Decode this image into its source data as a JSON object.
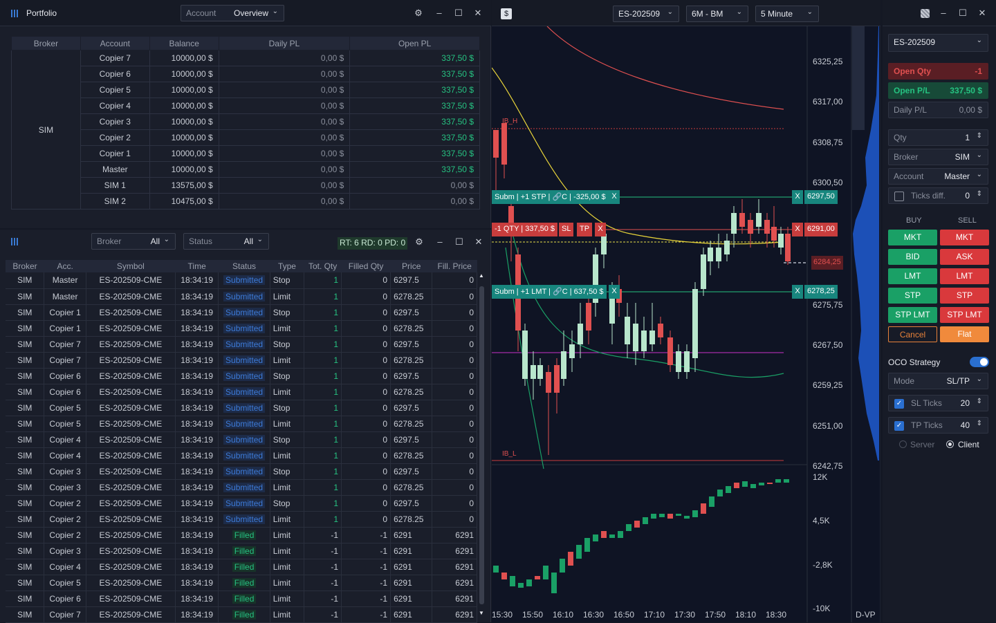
{
  "portfolio": {
    "title": "Portfolio",
    "dropdown_label": "Account",
    "dropdown_value": "Overview",
    "columns": [
      "Broker",
      "Account",
      "Balance",
      "Daily PL",
      "Open PL"
    ],
    "broker": "SIM",
    "rows": [
      {
        "account": "Copier 7",
        "balance": "10000,00 $",
        "daily": "0,00 $",
        "open": "337,50 $",
        "open_pos": true
      },
      {
        "account": "Copier 6",
        "balance": "10000,00 $",
        "daily": "0,00 $",
        "open": "337,50 $",
        "open_pos": true
      },
      {
        "account": "Copier 5",
        "balance": "10000,00 $",
        "daily": "0,00 $",
        "open": "337,50 $",
        "open_pos": true
      },
      {
        "account": "Copier 4",
        "balance": "10000,00 $",
        "daily": "0,00 $",
        "open": "337,50 $",
        "open_pos": true
      },
      {
        "account": "Copier 3",
        "balance": "10000,00 $",
        "daily": "0,00 $",
        "open": "337,50 $",
        "open_pos": true
      },
      {
        "account": "Copier 2",
        "balance": "10000,00 $",
        "daily": "0,00 $",
        "open": "337,50 $",
        "open_pos": true
      },
      {
        "account": "Copier 1",
        "balance": "10000,00 $",
        "daily": "0,00 $",
        "open": "337,50 $",
        "open_pos": true
      },
      {
        "account": "Master",
        "balance": "10000,00 $",
        "daily": "0,00 $",
        "open": "337,50 $",
        "open_pos": true
      },
      {
        "account": "SIM 1",
        "balance": "13575,00 $",
        "daily": "0,00 $",
        "open": "0,00 $",
        "open_pos": false
      },
      {
        "account": "SIM 2",
        "balance": "10475,00 $",
        "daily": "0,00 $",
        "open": "0,00 $",
        "open_pos": false
      }
    ]
  },
  "orders": {
    "broker_label": "Broker",
    "broker_value": "All",
    "status_label": "Status",
    "status_value": "All",
    "rt_badge": "RT: 6  RD: 0  PD: 0",
    "columns": [
      "Broker",
      "Acc.",
      "Symbol",
      "Time",
      "Status",
      "Type",
      "Tot. Qty",
      "Filled Qty",
      "Price",
      "Fill. Price"
    ],
    "rows": [
      [
        "SIM",
        "Master",
        "ES-202509-CME",
        "18:34:19",
        "Submitted",
        "Stop",
        "1",
        "0",
        "6297.5",
        "0"
      ],
      [
        "SIM",
        "Master",
        "ES-202509-CME",
        "18:34:19",
        "Submitted",
        "Limit",
        "1",
        "0",
        "6278.25",
        "0"
      ],
      [
        "SIM",
        "Copier 1",
        "ES-202509-CME",
        "18:34:19",
        "Submitted",
        "Stop",
        "1",
        "0",
        "6297.5",
        "0"
      ],
      [
        "SIM",
        "Copier 1",
        "ES-202509-CME",
        "18:34:19",
        "Submitted",
        "Limit",
        "1",
        "0",
        "6278.25",
        "0"
      ],
      [
        "SIM",
        "Copier 7",
        "ES-202509-CME",
        "18:34:19",
        "Submitted",
        "Stop",
        "1",
        "0",
        "6297.5",
        "0"
      ],
      [
        "SIM",
        "Copier 7",
        "ES-202509-CME",
        "18:34:19",
        "Submitted",
        "Limit",
        "1",
        "0",
        "6278.25",
        "0"
      ],
      [
        "SIM",
        "Copier 6",
        "ES-202509-CME",
        "18:34:19",
        "Submitted",
        "Stop",
        "1",
        "0",
        "6297.5",
        "0"
      ],
      [
        "SIM",
        "Copier 6",
        "ES-202509-CME",
        "18:34:19",
        "Submitted",
        "Limit",
        "1",
        "0",
        "6278.25",
        "0"
      ],
      [
        "SIM",
        "Copier 5",
        "ES-202509-CME",
        "18:34:19",
        "Submitted",
        "Stop",
        "1",
        "0",
        "6297.5",
        "0"
      ],
      [
        "SIM",
        "Copier 5",
        "ES-202509-CME",
        "18:34:19",
        "Submitted",
        "Limit",
        "1",
        "0",
        "6278.25",
        "0"
      ],
      [
        "SIM",
        "Copier 4",
        "ES-202509-CME",
        "18:34:19",
        "Submitted",
        "Stop",
        "1",
        "0",
        "6297.5",
        "0"
      ],
      [
        "SIM",
        "Copier 4",
        "ES-202509-CME",
        "18:34:19",
        "Submitted",
        "Limit",
        "1",
        "0",
        "6278.25",
        "0"
      ],
      [
        "SIM",
        "Copier 3",
        "ES-202509-CME",
        "18:34:19",
        "Submitted",
        "Stop",
        "1",
        "0",
        "6297.5",
        "0"
      ],
      [
        "SIM",
        "Copier 3",
        "ES-202509-CME",
        "18:34:19",
        "Submitted",
        "Limit",
        "1",
        "0",
        "6278.25",
        "0"
      ],
      [
        "SIM",
        "Copier 2",
        "ES-202509-CME",
        "18:34:19",
        "Submitted",
        "Stop",
        "1",
        "0",
        "6297.5",
        "0"
      ],
      [
        "SIM",
        "Copier 2",
        "ES-202509-CME",
        "18:34:19",
        "Submitted",
        "Limit",
        "1",
        "0",
        "6278.25",
        "0"
      ],
      [
        "SIM",
        "Copier 2",
        "ES-202509-CME",
        "18:34:19",
        "Filled",
        "Limit",
        "-1",
        "-1",
        "6291",
        "6291"
      ],
      [
        "SIM",
        "Copier 3",
        "ES-202509-CME",
        "18:34:19",
        "Filled",
        "Limit",
        "-1",
        "-1",
        "6291",
        "6291"
      ],
      [
        "SIM",
        "Copier 4",
        "ES-202509-CME",
        "18:34:19",
        "Filled",
        "Limit",
        "-1",
        "-1",
        "6291",
        "6291"
      ],
      [
        "SIM",
        "Copier 5",
        "ES-202509-CME",
        "18:34:19",
        "Filled",
        "Limit",
        "-1",
        "-1",
        "6291",
        "6291"
      ],
      [
        "SIM",
        "Copier 6",
        "ES-202509-CME",
        "18:34:19",
        "Filled",
        "Limit",
        "-1",
        "-1",
        "6291",
        "6291"
      ],
      [
        "SIM",
        "Copier 7",
        "ES-202509-CME",
        "18:34:19",
        "Filled",
        "Limit",
        "-1",
        "-1",
        "6291",
        "6291"
      ]
    ]
  },
  "chart": {
    "symbol": "ES-202509",
    "range": "6M - BM",
    "interval": "5 Minute",
    "price_labels": [
      "6325,25",
      "6317,00",
      "6308,75",
      "6300,50",
      "6275,75",
      "6267,50",
      "6259,25",
      "6251,00",
      "6242,75"
    ],
    "volume_labels": [
      "12K",
      "4,5K",
      "-2,8K",
      "-10K"
    ],
    "time_labels": [
      "15:30",
      "15:50",
      "16:10",
      "16:30",
      "16:50",
      "17:10",
      "17:30",
      "17:50",
      "18:10",
      "18:30"
    ],
    "ib_high": "IB_H",
    "ib_low": "IB_L",
    "stop_tag": "Subm | +1 STP | 🔗C | -325,00 $",
    "stop_price": "6297,50",
    "pos_tag": "-1 QTY | 337,50 $",
    "pos_sl": "SL",
    "pos_tp": "TP",
    "pos_price": "6291,00",
    "last_price": "6284,25",
    "limit_tag": "Subm | +1 LMT | 🔗C | 637,50 $",
    "limit_price": "6278,25",
    "close_x": "X",
    "dvp_label": "D-VP"
  },
  "trade": {
    "symbol": "ES-202509",
    "open_qty_label": "Open Qty",
    "open_qty": "-1",
    "open_pl_label": "Open P/L",
    "open_pl": "337,50 $",
    "daily_pl_label": "Daily P/L",
    "daily_pl": "0,00 $",
    "qty_label": "Qty",
    "qty": "1",
    "broker_label": "Broker",
    "broker": "SIM",
    "account_label": "Account",
    "account": "Master",
    "ticks_label": "Ticks diff.",
    "ticks": "0",
    "buy_label": "BUY",
    "sell_label": "SELL",
    "buttons": [
      "MKT",
      "BID",
      "LMT",
      "STP",
      "STP LMT"
    ],
    "sell_buttons": [
      "MKT",
      "ASK",
      "LMT",
      "STP",
      "STP LMT"
    ],
    "cancel_label": "Cancel",
    "flat_label": "Flat",
    "oco_label": "OCO Strategy",
    "mode_label": "Mode",
    "mode": "SL/TP",
    "sl_label": "SL Ticks",
    "sl": "20",
    "tp_label": "TP Ticks",
    "tp": "40",
    "server_label": "Server",
    "client_label": "Client"
  }
}
